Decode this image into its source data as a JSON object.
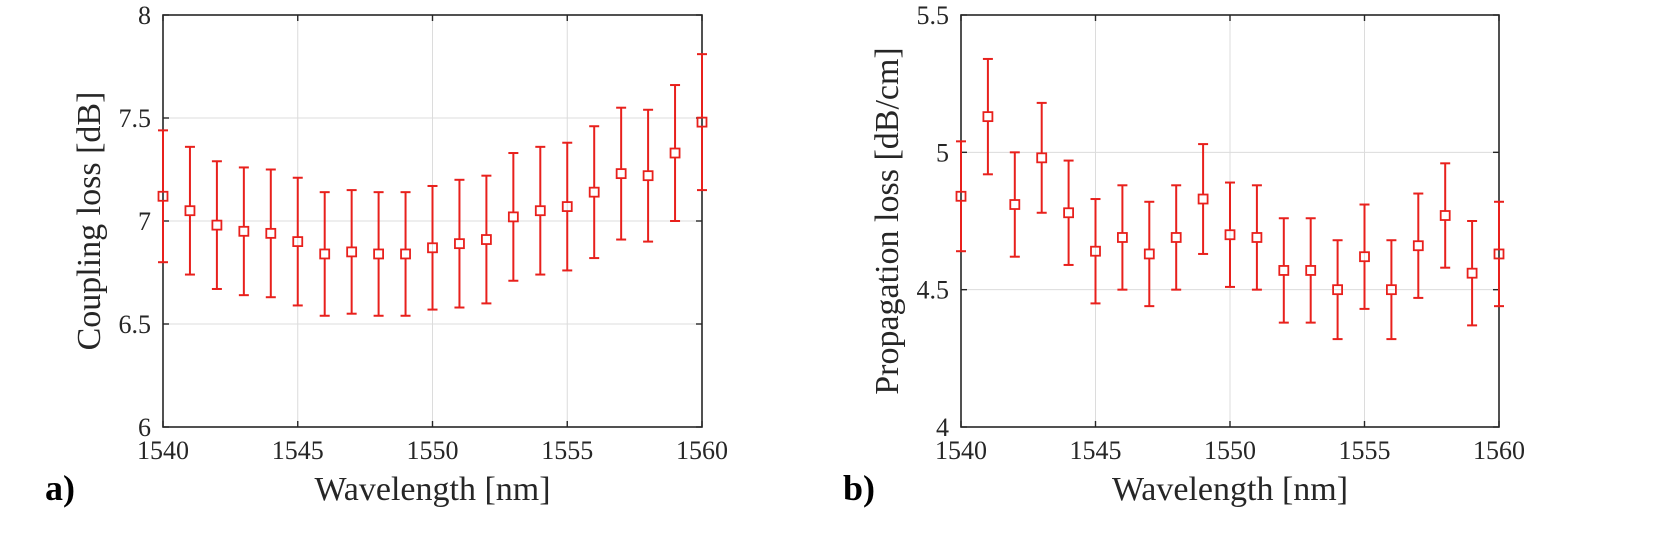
{
  "chart_data": [
    {
      "type": "scatter",
      "panel_label": "a)",
      "xlabel": "Wavelength [nm]",
      "ylabel": "Coupling loss [dB]",
      "xlim": [
        1540,
        1560
      ],
      "ylim": [
        6,
        8
      ],
      "xticks": [
        "1540",
        "1545",
        "1550",
        "1555",
        "1560"
      ],
      "yticks": [
        "6",
        "6.5",
        "7",
        "7.5",
        "8"
      ],
      "grid": true,
      "marker": "square",
      "color": "#e8201c",
      "x": [
        1540,
        1541,
        1542,
        1543,
        1544,
        1545,
        1546,
        1547,
        1548,
        1549,
        1550,
        1551,
        1552,
        1553,
        1554,
        1555,
        1556,
        1557,
        1558,
        1559,
        1560
      ],
      "y": [
        7.12,
        7.05,
        6.98,
        6.95,
        6.94,
        6.9,
        6.84,
        6.85,
        6.84,
        6.84,
        6.87,
        6.89,
        6.91,
        7.02,
        7.05,
        7.07,
        7.14,
        7.23,
        7.22,
        7.33,
        7.48
      ],
      "err": [
        0.32,
        0.31,
        0.31,
        0.31,
        0.31,
        0.31,
        0.3,
        0.3,
        0.3,
        0.3,
        0.3,
        0.31,
        0.31,
        0.31,
        0.31,
        0.31,
        0.32,
        0.32,
        0.32,
        0.33,
        0.33
      ]
    },
    {
      "type": "scatter",
      "panel_label": "b)",
      "xlabel": "Wavelength [nm]",
      "ylabel": "Propagation loss [dB/cm]",
      "xlim": [
        1540,
        1560
      ],
      "ylim": [
        4,
        5.5
      ],
      "xticks": [
        "1540",
        "1545",
        "1550",
        "1555",
        "1560"
      ],
      "yticks": [
        "4",
        "4.5",
        "5",
        "5.5"
      ],
      "grid": true,
      "marker": "square",
      "color": "#e8201c",
      "x": [
        1540,
        1541,
        1542,
        1543,
        1544,
        1545,
        1546,
        1547,
        1548,
        1549,
        1550,
        1551,
        1552,
        1553,
        1554,
        1555,
        1556,
        1557,
        1558,
        1559,
        1560
      ],
      "y": [
        4.84,
        5.13,
        4.81,
        4.98,
        4.78,
        4.64,
        4.69,
        4.63,
        4.69,
        4.83,
        4.7,
        4.69,
        4.57,
        4.57,
        4.5,
        4.62,
        4.5,
        4.66,
        4.77,
        4.56,
        4.63
      ],
      "err": [
        0.2,
        0.21,
        0.19,
        0.2,
        0.19,
        0.19,
        0.19,
        0.19,
        0.19,
        0.2,
        0.19,
        0.19,
        0.19,
        0.19,
        0.18,
        0.19,
        0.18,
        0.19,
        0.19,
        0.19,
        0.19
      ]
    }
  ]
}
